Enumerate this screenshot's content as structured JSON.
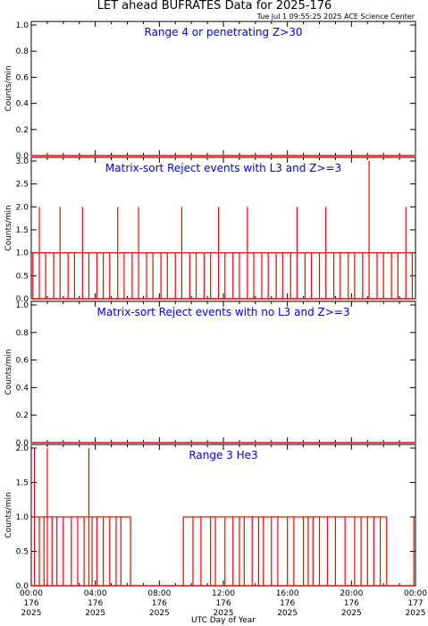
{
  "title": "LET ahead BUFRATES Data for 2025-176",
  "timestamp": "Tue Jul  1 09:55:25 2025 ACE Science Center",
  "x_axis_title": "UTC Day of Year",
  "colors": {
    "series": "#ff0000",
    "panel_title": "#0000ff",
    "axes": "#000000"
  },
  "chart_data": [
    {
      "type": "line",
      "title": "Range 4 or  penetrating Z>30",
      "ylabel": "Counts/min",
      "ylim": [
        0,
        1.0
      ],
      "yticks": [
        "0.0",
        "0.2",
        "0.4",
        "0.6",
        "0.8",
        "1.0"
      ],
      "xlim": [
        0,
        24
      ],
      "series": [
        {
          "x": [
            0,
            24
          ],
          "y": [
            0,
            0
          ]
        }
      ]
    },
    {
      "type": "line",
      "title": "Matrix-sort Reject events with L3 and Z>=3",
      "ylabel": "Counts/min",
      "ylim": [
        0,
        3.0
      ],
      "yticks": [
        "0.0",
        "0.5",
        "1.0",
        "1.5",
        "2.0",
        "2.5",
        "3.0"
      ],
      "xlim": [
        0,
        24
      ],
      "series": [
        {
          "x": [
            0.1,
            0.5,
            0.9,
            1.4,
            1.8,
            2.3,
            2.7,
            3.2,
            3.6,
            4.1,
            4.5,
            4.9,
            5.4,
            5.8,
            6.3,
            6.7,
            7.2,
            7.6,
            8.1,
            8.5,
            9.0,
            9.4,
            9.9,
            10.3,
            10.8,
            11.2,
            11.7,
            12.1,
            12.6,
            13.0,
            13.5,
            13.9,
            14.4,
            14.8,
            15.3,
            15.7,
            16.2,
            16.6,
            17.1,
            17.5,
            18.0,
            18.4,
            18.9,
            19.3,
            19.8,
            20.2,
            20.7,
            21.1,
            21.6,
            22.0,
            22.5,
            22.9,
            23.4,
            23.8
          ],
          "y": [
            1,
            2,
            1,
            1,
            2,
            1,
            1,
            2,
            1,
            1,
            1,
            1,
            2,
            1,
            1,
            2,
            1,
            1,
            1,
            1,
            1,
            2,
            1,
            1,
            1,
            1,
            2,
            1,
            1,
            1,
            2,
            1,
            1,
            1,
            1,
            1,
            1,
            2,
            1,
            1,
            1,
            2,
            1,
            1,
            1,
            1,
            1,
            3,
            1,
            1,
            1,
            1,
            2,
            1
          ]
        }
      ]
    },
    {
      "type": "line",
      "title": "Matrix-sort Reject events with no L3 and Z>=3",
      "ylabel": "Counts/min",
      "ylim": [
        0,
        1.0
      ],
      "yticks": [
        "0.0",
        "0.2",
        "0.4",
        "0.6",
        "0.8",
        "1.0"
      ],
      "xlim": [
        0,
        24
      ],
      "series": [
        {
          "x": [
            0,
            24
          ],
          "y": [
            0,
            0
          ]
        }
      ]
    },
    {
      "type": "line",
      "title": "Range 3 He3",
      "ylabel": "Counts/min",
      "ylim": [
        0,
        2.0
      ],
      "yticks": [
        "0.0",
        "0.5",
        "1.0",
        "1.5",
        "2.0"
      ],
      "xlim": [
        0,
        24
      ],
      "xticks": [
        {
          "time": "00:00",
          "doy": "176",
          "year": "2025"
        },
        {
          "time": "04:00",
          "doy": "176",
          "year": "2025"
        },
        {
          "time": "08:00",
          "doy": "176",
          "year": "2025"
        },
        {
          "time": "12:00",
          "doy": "176",
          "year": "2025"
        },
        {
          "time": "16:00",
          "doy": "176",
          "year": "2025"
        },
        {
          "time": "20:00",
          "doy": "176",
          "year": "2025"
        },
        {
          "time": "00:00",
          "doy": "177",
          "year": "2025"
        }
      ],
      "series": [
        {
          "x": [
            0.2,
            0.5,
            0.8,
            1.0,
            1.3,
            1.6,
            2.0,
            2.5,
            2.9,
            3.3,
            3.6,
            3.8,
            4.1,
            4.5,
            4.9,
            5.3,
            5.6,
            6.2,
            9.5,
            10.1,
            10.6,
            11.2,
            11.5,
            12.1,
            12.6,
            13.0,
            13.3,
            13.8,
            14.2,
            14.5,
            15.0,
            15.4,
            16.0,
            16.4,
            17.0,
            17.3,
            17.6,
            18.0,
            18.5,
            19.0,
            19.6,
            20.2,
            20.6,
            21.0,
            21.4,
            21.8,
            22.2,
            23.9
          ],
          "y": [
            2,
            1,
            1,
            2,
            1,
            1,
            1,
            1,
            1,
            1,
            2,
            1,
            1,
            1,
            1,
            1,
            1,
            1,
            1,
            1,
            1,
            1,
            1,
            1,
            1,
            1,
            1,
            1,
            1,
            1,
            1,
            1,
            1,
            1,
            1,
            1,
            1,
            1,
            1,
            1,
            1,
            1,
            1,
            1,
            1,
            1,
            1,
            1
          ]
        }
      ]
    }
  ]
}
